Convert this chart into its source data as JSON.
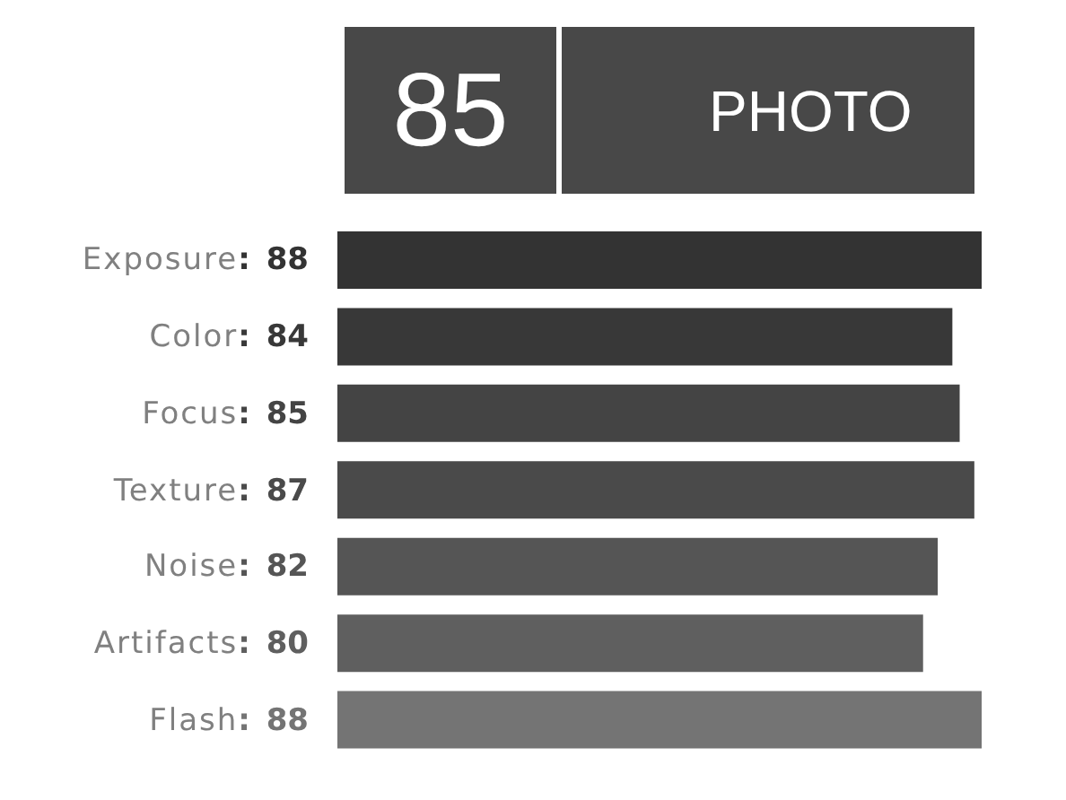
{
  "chart_data": {
    "type": "bar",
    "orientation": "horizontal",
    "title": "PHOTO",
    "annotations": [
      "85"
    ],
    "categories": [
      "Exposure",
      "Color",
      "Focus",
      "Texture",
      "Noise",
      "Artifacts",
      "Flash"
    ],
    "values": [
      88,
      84,
      85,
      87,
      82,
      80,
      88
    ],
    "value_labels": [
      ": 88",
      ": 84",
      ": 85",
      ": 87",
      ": 82",
      ": 80",
      ": 88"
    ],
    "colors": [
      "#333333",
      "#383838",
      "#444444",
      "#4a4a4a",
      "#555555",
      "#5f5f5f",
      "#747474"
    ],
    "tick_labels": "y"
  }
}
